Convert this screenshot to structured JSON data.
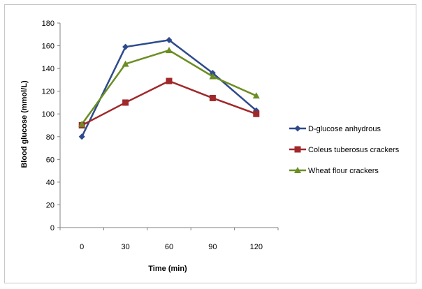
{
  "chart_data": {
    "type": "line",
    "title": "",
    "xlabel": "Time (min)",
    "ylabel": "Blood glucose (mmol/L)",
    "x": [
      0,
      30,
      60,
      90,
      120
    ],
    "ylim": [
      0,
      180
    ],
    "ytick_step": 20,
    "grid": false,
    "legend_position": "right",
    "series": [
      {
        "name": "D-glucose anhydrous",
        "values": [
          80,
          159,
          165,
          136,
          103
        ],
        "color": "#2e4a8c",
        "marker": "diamond"
      },
      {
        "name": "Coleus tuberosus crackers",
        "values": [
          90,
          110,
          129,
          114,
          100
        ],
        "color": "#a0282a",
        "marker": "square"
      },
      {
        "name": "Wheat flour crackers",
        "values": [
          91,
          144,
          156,
          133,
          116
        ],
        "color": "#6b8e23",
        "marker": "triangle"
      }
    ]
  }
}
